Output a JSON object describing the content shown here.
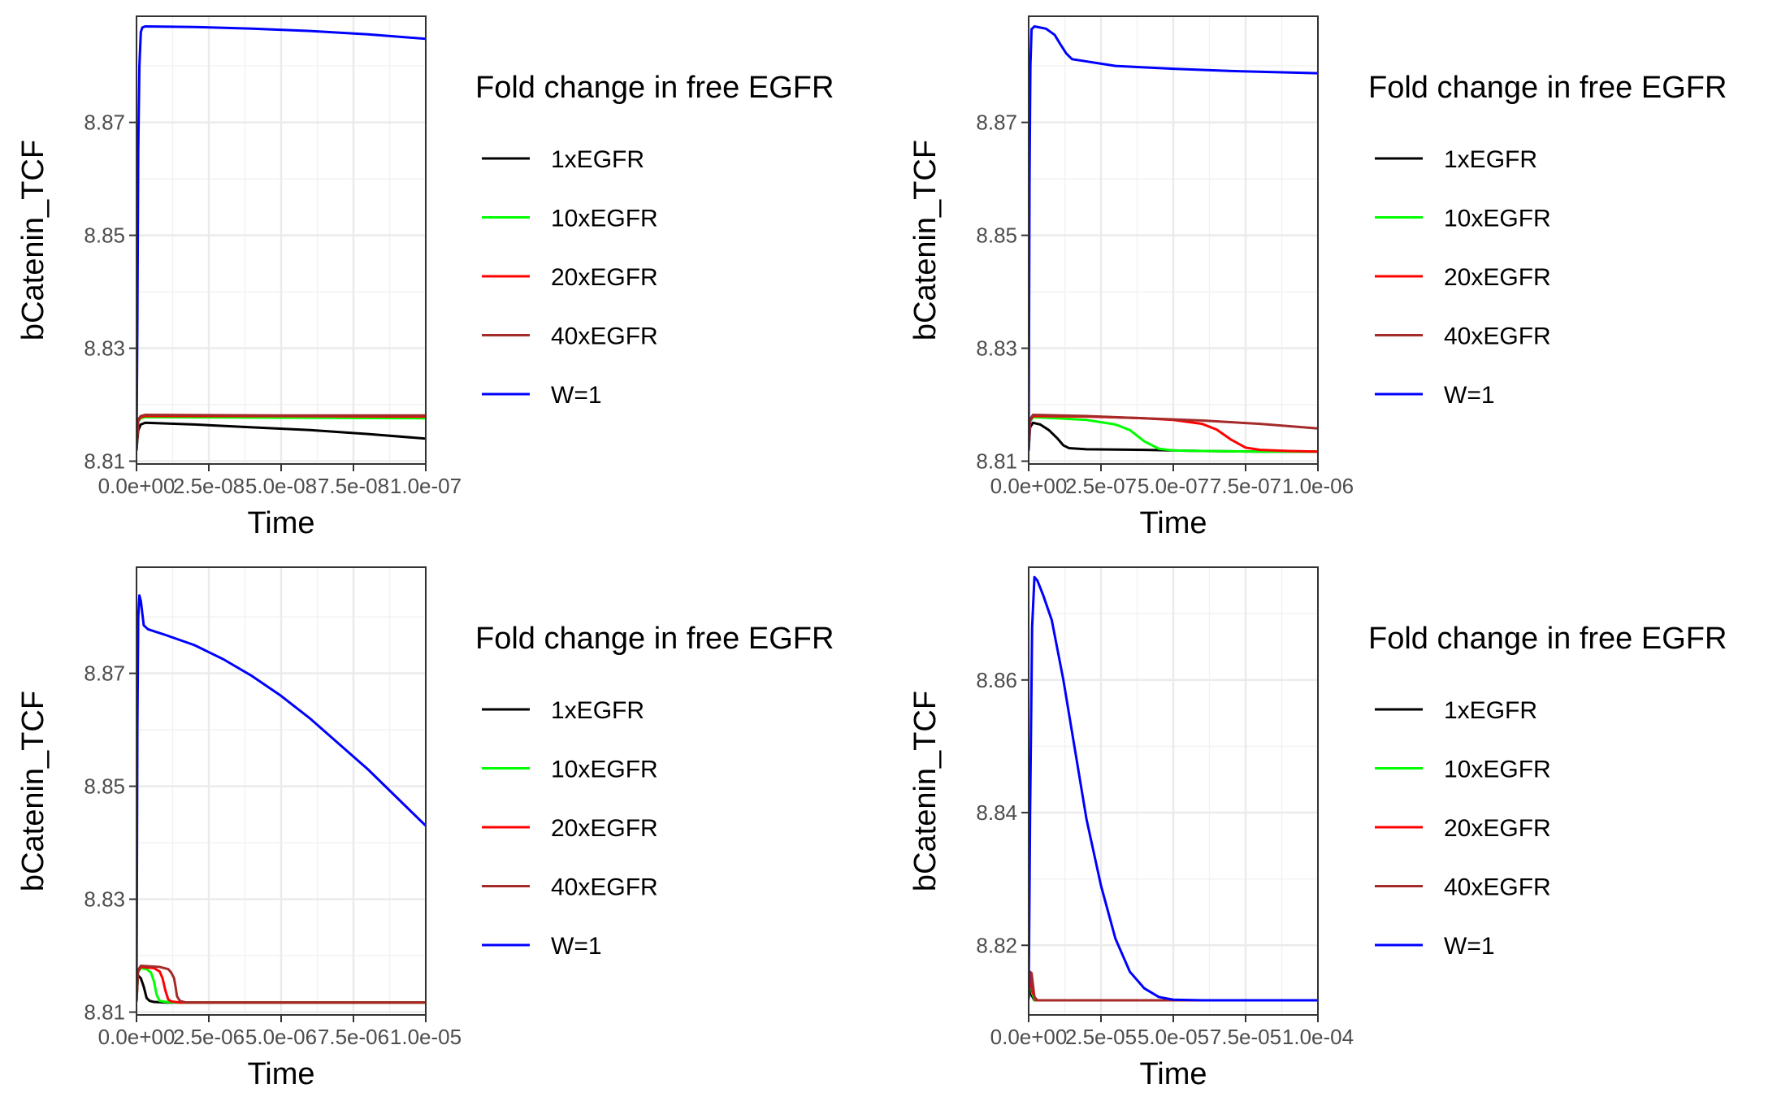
{
  "chart_data": [
    {
      "type": "line",
      "xlabel": "Time",
      "ylabel": "bCatenin_TCF",
      "xlim": [
        0,
        1e-07
      ],
      "ylim": [
        8.8095,
        8.8888
      ],
      "x_ticks": [
        0,
        2.5e-08,
        5e-08,
        7.5e-08,
        1e-07
      ],
      "x_tick_labels": [
        "0.0e+00",
        "2.5e-08",
        "5.0e-08",
        "7.5e-08",
        "1.0e-07"
      ],
      "y_ticks": [
        8.81,
        8.83,
        8.85,
        8.87
      ],
      "y_tick_labels": [
        "8.81",
        "8.83",
        "8.85",
        "8.87"
      ],
      "legend": {
        "title": "Fold change in free EGFR",
        "position": "right"
      },
      "series": [
        {
          "name": "1xEGFR",
          "color": "#000000",
          "x": [
            0,
            6e-10,
            1.5e-09,
            3e-09,
            2e-08,
            4e-08,
            6e-08,
            8e-08,
            1e-07
          ],
          "values": [
            8.812,
            8.8155,
            8.8165,
            8.8168,
            8.8165,
            8.816,
            8.8155,
            8.8148,
            8.814
          ]
        },
        {
          "name": "10xEGFR",
          "color": "#00ff00",
          "x": [
            0,
            6e-10,
            1.5e-09,
            3e-09,
            5e-08,
            1e-07
          ],
          "values": [
            8.812,
            8.817,
            8.8176,
            8.8178,
            8.8177,
            8.8176
          ]
        },
        {
          "name": "20xEGFR",
          "color": "#ff0000",
          "x": [
            0,
            6e-10,
            1.5e-09,
            3e-09,
            5e-08,
            1e-07
          ],
          "values": [
            8.812,
            8.8172,
            8.8178,
            8.818,
            8.818,
            8.8179
          ]
        },
        {
          "name": "40xEGFR",
          "color": "#a52a2a",
          "x": [
            0,
            6e-10,
            1.5e-09,
            3e-09,
            5e-08,
            1e-07
          ],
          "values": [
            8.812,
            8.8174,
            8.818,
            8.8182,
            8.8181,
            8.8181
          ]
        },
        {
          "name": "W=1",
          "color": "#0000ff",
          "x": [
            0,
            3e-10,
            6e-10,
            1e-09,
            1.5e-09,
            2e-09,
            3e-09,
            2e-08,
            4e-08,
            6e-08,
            8e-08,
            1e-07
          ],
          "values": [
            8.812,
            8.835,
            8.865,
            8.88,
            8.886,
            8.8868,
            8.887,
            8.8869,
            8.8866,
            8.8862,
            8.8856,
            8.8848
          ]
        }
      ]
    },
    {
      "type": "line",
      "xlabel": "Time",
      "ylabel": "bCatenin_TCF",
      "xlim": [
        0,
        1e-06
      ],
      "ylim": [
        8.8095,
        8.8888
      ],
      "x_ticks": [
        0,
        2.5e-07,
        5e-07,
        7.5e-07,
        1e-06
      ],
      "x_tick_labels": [
        "0.0e+00",
        "2.5e-07",
        "5.0e-07",
        "7.5e-07",
        "1.0e-06"
      ],
      "y_ticks": [
        8.81,
        8.83,
        8.85,
        8.87
      ],
      "y_tick_labels": [
        "8.81",
        "8.83",
        "8.85",
        "8.87"
      ],
      "legend": {
        "title": "Fold change in free EGFR",
        "position": "right"
      },
      "series": [
        {
          "name": "1xEGFR",
          "color": "#000000",
          "x": [
            0,
            5e-09,
            1.5e-08,
            4e-08,
            7e-08,
            1e-07,
            1.2e-07,
            1.4e-07,
            2e-07,
            4e-07,
            6e-07,
            8e-07,
            1e-06
          ],
          "values": [
            8.812,
            8.816,
            8.8168,
            8.8165,
            8.8155,
            8.814,
            8.8128,
            8.8123,
            8.8121,
            8.812,
            8.8118,
            8.8117,
            8.8117
          ]
        },
        {
          "name": "10xEGFR",
          "color": "#00ff00",
          "x": [
            0,
            5e-09,
            1.5e-08,
            1e-07,
            2e-07,
            3e-07,
            3.5e-07,
            4e-07,
            4.5e-07,
            5e-07,
            6e-07,
            8e-07,
            1e-06
          ],
          "values": [
            8.812,
            8.817,
            8.8178,
            8.8176,
            8.8173,
            8.8165,
            8.8155,
            8.8135,
            8.8122,
            8.8119,
            8.8118,
            8.8117,
            8.8117
          ]
        },
        {
          "name": "20xEGFR",
          "color": "#ff0000",
          "x": [
            0,
            5e-09,
            1.5e-08,
            2e-07,
            4e-07,
            5e-07,
            6e-07,
            6.5e-07,
            7e-07,
            7.5e-07,
            8e-07,
            9e-07,
            1e-06
          ],
          "values": [
            8.812,
            8.8172,
            8.818,
            8.8179,
            8.8176,
            8.8173,
            8.8166,
            8.8156,
            8.8138,
            8.8124,
            8.812,
            8.8118,
            8.8117
          ]
        },
        {
          "name": "40xEGFR",
          "color": "#a52a2a",
          "x": [
            0,
            5e-09,
            1.5e-08,
            2e-07,
            4e-07,
            6e-07,
            8e-07,
            1e-06
          ],
          "values": [
            8.812,
            8.8174,
            8.8182,
            8.818,
            8.8176,
            8.8172,
            8.8166,
            8.8158
          ]
        },
        {
          "name": "W=1",
          "color": "#0000ff",
          "x": [
            0,
            3e-09,
            6e-09,
            1e-08,
            2e-08,
            6e-08,
            9e-08,
            1.1e-07,
            1.3e-07,
            1.5e-07,
            3e-07,
            5e-07,
            7e-07,
            1e-06
          ],
          "values": [
            8.812,
            8.86,
            8.88,
            8.8865,
            8.887,
            8.8866,
            8.8855,
            8.8838,
            8.8822,
            8.8812,
            8.88,
            8.8795,
            8.8791,
            8.8787
          ]
        }
      ]
    },
    {
      "type": "line",
      "xlabel": "Time",
      "ylabel": "bCatenin_TCF",
      "xlim": [
        0,
        1e-05
      ],
      "ylim": [
        8.8095,
        8.8888
      ],
      "x_ticks": [
        0,
        2.5e-06,
        5e-06,
        7.5e-06,
        1e-05
      ],
      "x_tick_labels": [
        "0.0e+00",
        "2.5e-06",
        "5.0e-06",
        "7.5e-06",
        "1.0e-05"
      ],
      "y_ticks": [
        8.81,
        8.83,
        8.85,
        8.87
      ],
      "y_tick_labels": [
        "8.81",
        "8.83",
        "8.85",
        "8.87"
      ],
      "legend": {
        "title": "Fold change in free EGFR",
        "position": "right"
      },
      "series": [
        {
          "name": "1xEGFR",
          "color": "#000000",
          "x": [
            0,
            5e-08,
            1.5e-07,
            2.5e-07,
            3.5e-07,
            4.5e-07,
            6e-07,
            1e-06,
            5e-06,
            1e-05
          ],
          "values": [
            8.812,
            8.8165,
            8.816,
            8.8145,
            8.8125,
            8.812,
            8.8118,
            8.8117,
            8.8117,
            8.8117
          ]
        },
        {
          "name": "10xEGFR",
          "color": "#00ff00",
          "x": [
            0,
            5e-08,
            1.5e-07,
            3.5e-07,
            5e-07,
            6e-07,
            7e-07,
            8e-07,
            1e-06,
            1.5e-06,
            5e-06,
            1e-05
          ],
          "values": [
            8.812,
            8.817,
            8.8178,
            8.8176,
            8.817,
            8.8155,
            8.813,
            8.812,
            8.8118,
            8.8117,
            8.8117,
            8.8117
          ]
        },
        {
          "name": "20xEGFR",
          "color": "#ff0000",
          "x": [
            0,
            5e-08,
            1.5e-07,
            6e-07,
            8e-07,
            9e-07,
            1e-06,
            1.1e-06,
            1.2e-06,
            1.5e-06,
            5e-06,
            1e-05
          ],
          "values": [
            8.812,
            8.8172,
            8.818,
            8.8178,
            8.8172,
            8.816,
            8.8138,
            8.8122,
            8.8119,
            8.8117,
            8.8117,
            8.8117
          ]
        },
        {
          "name": "40xEGFR",
          "color": "#a52a2a",
          "x": [
            0,
            5e-08,
            1.5e-07,
            8e-07,
            1.1e-06,
            1.2e-06,
            1.3e-06,
            1.35e-06,
            1.4e-06,
            1.5e-06,
            1.7e-06,
            5e-06,
            1e-05
          ],
          "values": [
            8.812,
            8.8174,
            8.8182,
            8.818,
            8.8176,
            8.817,
            8.816,
            8.8145,
            8.8128,
            8.812,
            8.8117,
            8.8117,
            8.8117
          ]
        },
        {
          "name": "W=1",
          "color": "#0000ff",
          "x": [
            0,
            3e-08,
            6e-08,
            1e-07,
            1.5e-07,
            2.5e-07,
            4e-07,
            1e-06,
            2e-06,
            3e-06,
            4e-06,
            5e-06,
            6e-06,
            7e-06,
            8e-06,
            9e-06,
            1e-05
          ],
          "values": [
            8.812,
            8.86,
            8.88,
            8.8838,
            8.8828,
            8.8785,
            8.8778,
            8.8768,
            8.875,
            8.8725,
            8.8695,
            8.866,
            8.862,
            8.8575,
            8.853,
            8.848,
            8.843
          ]
        }
      ]
    },
    {
      "type": "line",
      "xlabel": "Time",
      "ylabel": "bCatenin_TCF",
      "xlim": [
        0,
        0.0001
      ],
      "ylim": [
        8.8095,
        8.877
      ],
      "x_ticks": [
        0,
        2.5e-05,
        5e-05,
        7.5e-05,
        0.0001
      ],
      "x_tick_labels": [
        "0.0e+00",
        "2.5e-05",
        "5.0e-05",
        "7.5e-05",
        "1.0e-04"
      ],
      "y_ticks": [
        8.82,
        8.84,
        8.86
      ],
      "y_tick_labels": [
        "8.82",
        "8.84",
        "8.86"
      ],
      "legend": {
        "title": "Fold change in free EGFR",
        "position": "right"
      },
      "series": [
        {
          "name": "1xEGFR",
          "color": "#000000",
          "x": [
            0,
            5e-07,
            1e-06,
            2e-06,
            0.0001
          ],
          "values": [
            8.812,
            8.815,
            8.8125,
            8.8117,
            8.8117
          ]
        },
        {
          "name": "10xEGFR",
          "color": "#00ff00",
          "x": [
            0,
            5e-07,
            1.2e-06,
            2.2e-06,
            0.0001
          ],
          "values": [
            8.812,
            8.8155,
            8.8128,
            8.8117,
            8.8117
          ]
        },
        {
          "name": "20xEGFR",
          "color": "#ff0000",
          "x": [
            0,
            5e-07,
            1.3e-06,
            2.5e-06,
            0.0001
          ],
          "values": [
            8.812,
            8.8158,
            8.813,
            8.8117,
            8.8117
          ]
        },
        {
          "name": "40xEGFR",
          "color": "#a52a2a",
          "x": [
            0,
            5e-07,
            1e-06,
            1.5e-06,
            2e-06,
            3e-06,
            0.0001
          ],
          "values": [
            8.812,
            8.816,
            8.8158,
            8.814,
            8.8122,
            8.8117,
            8.8117
          ]
        },
        {
          "name": "W=1",
          "color": "#0000ff",
          "x": [
            0,
            5e-07,
            1.2e-06,
            2e-06,
            3e-06,
            5e-06,
            8e-06,
            1.2e-05,
            1.6e-05,
            2e-05,
            2.5e-05,
            3e-05,
            3.5e-05,
            4e-05,
            4.5e-05,
            5e-05,
            6e-05,
            7e-05,
            8e-05,
            0.0001
          ],
          "values": [
            8.812,
            8.84,
            8.868,
            8.8755,
            8.875,
            8.8728,
            8.869,
            8.86,
            8.8495,
            8.839,
            8.829,
            8.821,
            8.816,
            8.8135,
            8.8122,
            8.8118,
            8.8117,
            8.8117,
            8.8117,
            8.8117
          ]
        }
      ]
    }
  ]
}
